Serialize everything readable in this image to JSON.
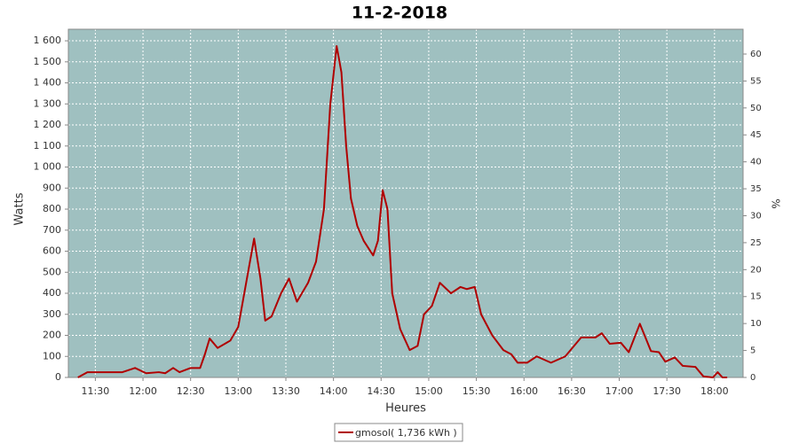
{
  "chart_data": {
    "type": "line",
    "title": "11-2-2018",
    "x_label": "Heures",
    "y_label": "Watts",
    "y2_label": "%",
    "xlim": [
      673,
      1098
    ],
    "ylim": [
      0,
      1655
    ],
    "y2lim": [
      0,
      64.6
    ],
    "xticks": [
      {
        "value": 690,
        "label": "11:30"
      },
      {
        "value": 720,
        "label": "12:00"
      },
      {
        "value": 750,
        "label": "12:30"
      },
      {
        "value": 780,
        "label": "13:00"
      },
      {
        "value": 810,
        "label": "13:30"
      },
      {
        "value": 840,
        "label": "14:00"
      },
      {
        "value": 870,
        "label": "14:30"
      },
      {
        "value": 900,
        "label": "15:00"
      },
      {
        "value": 930,
        "label": "15:30"
      },
      {
        "value": 960,
        "label": "16:00"
      },
      {
        "value": 990,
        "label": "16:30"
      },
      {
        "value": 1020,
        "label": "17:00"
      },
      {
        "value": 1050,
        "label": "17:30"
      },
      {
        "value": 1080,
        "label": "18:00"
      }
    ],
    "yticks": [
      0,
      100,
      200,
      300,
      400,
      500,
      600,
      700,
      800,
      900,
      {
        "value": 1000,
        "label": "1 000"
      },
      {
        "value": 1100,
        "label": "1 100"
      },
      {
        "value": 1200,
        "label": "1 200"
      },
      {
        "value": 1300,
        "label": "1 300"
      },
      {
        "value": 1400,
        "label": "1 400"
      },
      {
        "value": 1500,
        "label": "1 500"
      },
      {
        "value": 1600,
        "label": "1 600"
      }
    ],
    "y2ticks": [
      0,
      5,
      10,
      15,
      20,
      25,
      30,
      35,
      40,
      45,
      50,
      55,
      60
    ],
    "grid": true,
    "plot_background": "#9fc0c0",
    "x": [
      679,
      685,
      707,
      715,
      722,
      730,
      734,
      739,
      743,
      750,
      756,
      759,
      762,
      767,
      775,
      780,
      785,
      790,
      794,
      797,
      801,
      807,
      812,
      817,
      824,
      829,
      834,
      838,
      842,
      845,
      848,
      851,
      855,
      859,
      865,
      868,
      871,
      874,
      877,
      882,
      888,
      893,
      897,
      902,
      907,
      914,
      920,
      924,
      929,
      933,
      940,
      947,
      952,
      956,
      962,
      968,
      977,
      986,
      996,
      1005,
      1009,
      1014,
      1021,
      1026,
      1033,
      1040,
      1045,
      1049,
      1055,
      1060,
      1068,
      1073,
      1079,
      1082,
      1085,
      1088
    ],
    "series": [
      {
        "name": "gmosol( 1,736 kWh )",
        "color": "#b00000",
        "values": [
          0,
          25,
          25,
          45,
          20,
          25,
          20,
          45,
          25,
          45,
          45,
          110,
          185,
          140,
          175,
          240,
          450,
          660,
          470,
          270,
          290,
          400,
          470,
          360,
          450,
          550,
          800,
          1300,
          1575,
          1450,
          1100,
          850,
          720,
          650,
          580,
          650,
          890,
          800,
          400,
          230,
          130,
          150,
          300,
          340,
          450,
          400,
          430,
          420,
          430,
          300,
          200,
          130,
          110,
          70,
          70,
          100,
          70,
          100,
          190,
          190,
          210,
          160,
          165,
          120,
          255,
          125,
          120,
          75,
          95,
          55,
          50,
          5,
          0,
          25,
          0,
          0
        ]
      }
    ]
  }
}
